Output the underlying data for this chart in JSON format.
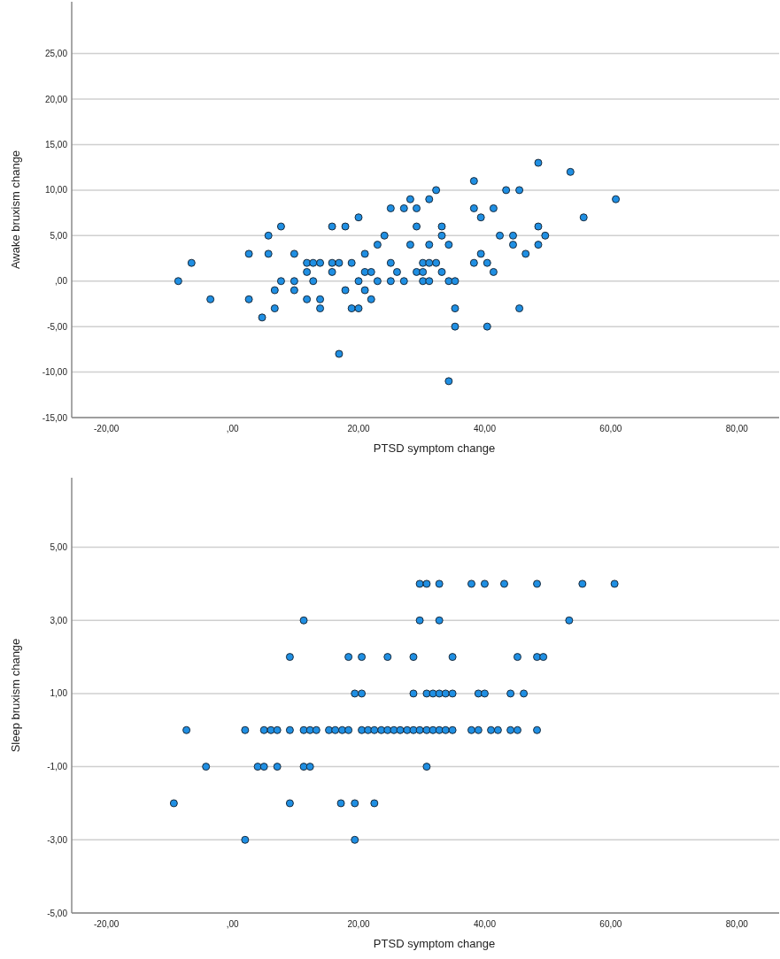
{
  "chart_data": [
    {
      "type": "scatter",
      "xlabel": "PTSD symptom change",
      "ylabel": "Awake bruxism change",
      "xlim": [
        -25.5,
        86.7
      ],
      "ylim": [
        -15,
        30.7
      ],
      "xticks": [
        {
          "value": -20,
          "label": "-20,00"
        },
        {
          "value": 0,
          "label": ",00"
        },
        {
          "value": 20,
          "label": "20,00"
        },
        {
          "value": 40,
          "label": "40,00"
        },
        {
          "value": 60,
          "label": "60,00"
        },
        {
          "value": 80,
          "label": "80,00"
        }
      ],
      "yticks": [
        {
          "value": -15,
          "label": "-15,00"
        },
        {
          "value": -10,
          "label": "-10,00"
        },
        {
          "value": -5,
          "label": "-5,00"
        },
        {
          "value": 0,
          "label": ",00"
        },
        {
          "value": 5,
          "label": "5,00"
        },
        {
          "value": 10,
          "label": "10,00"
        },
        {
          "value": 15,
          "label": "15,00"
        },
        {
          "value": 20,
          "label": "20,00"
        },
        {
          "value": 25,
          "label": "25,00"
        }
      ],
      "grid": "y",
      "marker": "circle",
      "series": [
        {
          "color": "#1f8fe3",
          "x": [
            7.7,
            15.8,
            17.9,
            5.7,
            2.6,
            5.7,
            9.8,
            -6.5,
            11.8,
            12.8,
            13.9,
            15.8,
            16.9,
            18.9,
            11.8,
            15.8,
            -8.6,
            7.7,
            9.8,
            12.8,
            6.7,
            9.8,
            17.9,
            -3.5,
            2.6,
            11.8,
            13.9,
            6.7,
            13.9,
            18.9,
            4.7,
            16.9,
            48.5,
            53.6,
            38.3,
            32.3,
            43.4,
            45.5,
            28.2,
            31.2,
            60.8,
            25.1,
            27.2,
            29.2,
            38.3,
            41.4,
            20,
            39.4,
            55.7,
            29.2,
            33.2,
            48.5,
            24.1,
            33.2,
            42.4,
            44.5,
            49.6,
            23,
            28.2,
            31.2,
            34.3,
            44.5,
            48.5,
            21,
            39.4,
            46.5,
            25.1,
            30.2,
            31.2,
            32.3,
            38.3,
            40.4,
            21,
            22,
            26.1,
            29.2,
            30.2,
            33.2,
            41.4,
            20,
            23,
            25.1,
            27.2,
            30.2,
            31.2,
            34.3,
            35.3,
            21,
            22,
            20,
            35.3,
            45.5,
            35.3,
            40.4,
            34.3
          ],
          "values": [
            6,
            6,
            6,
            5,
            3,
            3,
            3,
            2,
            2,
            2,
            2,
            2,
            2,
            2,
            1,
            1,
            0,
            0,
            0,
            0,
            -1,
            -1,
            -1,
            -2,
            -2,
            -2,
            -2,
            -3,
            -3,
            -3,
            -4,
            -8,
            13,
            12,
            11,
            10,
            10,
            10,
            9,
            9,
            9,
            8,
            8,
            8,
            8,
            8,
            7,
            7,
            7,
            6,
            6,
            6,
            5,
            5,
            5,
            5,
            5,
            4,
            4,
            4,
            4,
            4,
            4,
            3,
            3,
            3,
            2,
            2,
            2,
            2,
            2,
            2,
            1,
            1,
            1,
            1,
            1,
            1,
            1,
            0,
            0,
            0,
            0,
            0,
            0,
            0,
            0,
            -1,
            -2,
            -3,
            -3,
            -3,
            -5,
            -5,
            -11
          ]
        }
      ]
    },
    {
      "type": "scatter",
      "xlabel": "PTSD symptom change",
      "ylabel": "Sleep bruxism change",
      "xlim": [
        -25.5,
        86.7
      ],
      "ylim": [
        -5,
        6.9
      ],
      "xticks": [
        {
          "value": -20,
          "label": "-20,00"
        },
        {
          "value": 0,
          "label": ",00"
        },
        {
          "value": 20,
          "label": "20,00"
        },
        {
          "value": 40,
          "label": "40,00"
        },
        {
          "value": 60,
          "label": "60,00"
        },
        {
          "value": 80,
          "label": "80,00"
        }
      ],
      "yticks": [
        {
          "value": -5,
          "label": "-5,00"
        },
        {
          "value": -3,
          "label": "-3,00"
        },
        {
          "value": -1,
          "label": "-1,00"
        },
        {
          "value": 1,
          "label": "1,00"
        },
        {
          "value": 3,
          "label": "3,00"
        },
        {
          "value": 5,
          "label": "5,00"
        }
      ],
      "grid": "y",
      "marker": "circle",
      "series": [
        {
          "color": "#1f8fe3",
          "x": [
            29.7,
            30.8,
            32.8,
            37.9,
            40.0,
            43.1,
            48.3,
            55.5,
            60.6,
            11.3,
            29.7,
            32.8,
            53.4,
            9.1,
            18.4,
            20.5,
            24.6,
            28.7,
            34.9,
            45.2,
            48.3,
            49.3,
            19.4,
            20.5,
            28.7,
            30.8,
            31.8,
            32.8,
            33.8,
            34.9,
            39.0,
            40.0,
            44.1,
            46.2,
            -7.3,
            2.0,
            5.0,
            6.1,
            7.1,
            9.1,
            11.3,
            12.3,
            13.3,
            15.3,
            16.3,
            17.4,
            18.4,
            20.5,
            21.5,
            22.5,
            23.6,
            24.6,
            25.6,
            26.6,
            27.7,
            28.7,
            29.7,
            30.8,
            31.8,
            32.8,
            33.8,
            34.9,
            37.9,
            39.0,
            41.0,
            42.1,
            44.1,
            45.2,
            48.3,
            -4.2,
            4.0,
            5.0,
            7.1,
            11.3,
            12.3,
            30.8,
            -9.3,
            9.1,
            17.2,
            19.4,
            22.5,
            2.0,
            19.4
          ],
          "values": [
            4,
            4,
            4,
            4,
            4,
            4,
            4,
            4,
            4,
            3,
            3,
            3,
            3,
            2,
            2,
            2,
            2,
            2,
            2,
            2,
            2,
            2,
            1,
            1,
            1,
            1,
            1,
            1,
            1,
            1,
            1,
            1,
            1,
            1,
            0,
            0,
            0,
            0,
            0,
            0,
            0,
            0,
            0,
            0,
            0,
            0,
            0,
            0,
            0,
            0,
            0,
            0,
            0,
            0,
            0,
            0,
            0,
            0,
            0,
            0,
            0,
            0,
            0,
            0,
            0,
            0,
            0,
            0,
            0,
            -1,
            -1,
            -1,
            -1,
            -1,
            -1,
            -1,
            -2,
            -2,
            -2,
            -2,
            -2,
            -3,
            -3
          ]
        }
      ]
    }
  ]
}
